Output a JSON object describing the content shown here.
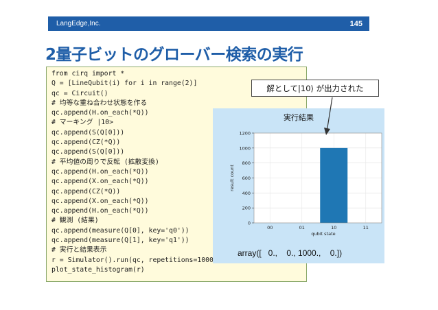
{
  "header": {
    "company": "LangEdge,Inc.",
    "page_number": "145",
    "bar_color": "#1f5ea8"
  },
  "title": "2量子ビットのグローバー検索の実行",
  "code_lines": [
    "from cirq import *",
    "Q = [LineQubit(i) for i in range(2)]",
    "qc = Circuit()",
    "# 均等な重ね合わせ状態を作る",
    "qc.append(H.on_each(*Q))",
    "# マーキング |10>",
    "qc.append(S(Q[0]))",
    "qc.append(CZ(*Q))",
    "qc.append(S(Q[0]))",
    "# 平均値の周りで反転 (拡散変換)",
    "qc.append(H.on_each(*Q))",
    "qc.append(X.on_each(*Q))",
    "qc.append(CZ(*Q))",
    "qc.append(X.on_each(*Q))",
    "qc.append(H.on_each(*Q))",
    "# 観測 (結果)",
    "qc.append(measure(Q[0], key='q0'))",
    "qc.append(measure(Q[1], key='q1'))",
    "# 実行と結果表示",
    "r = Simulator().run(qc, repetitions=1000)",
    "plot_state_histogram(r)"
  ],
  "result": {
    "label": "実行結果",
    "array_text": "array([   0.,    0., 1000.,    0.])"
  },
  "callout": "解として|10⟩ が出力された",
  "chart_data": {
    "type": "bar",
    "categories": [
      "00",
      "01",
      "10",
      "11"
    ],
    "values": [
      0,
      0,
      1000,
      0
    ],
    "title": "",
    "xlabel": "qubit state",
    "ylabel": "result count",
    "ylim": [
      0,
      1200
    ],
    "yticks": [
      0,
      200,
      400,
      600,
      800,
      1000,
      1200
    ],
    "grid": true,
    "bar_color": "#1f77b4"
  }
}
